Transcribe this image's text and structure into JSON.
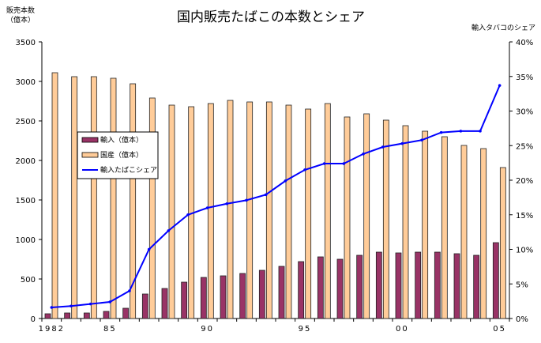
{
  "chart_data": {
    "type": "bar",
    "title": "国内販売たばこの本数とシェア",
    "ylabel": [
      "販売本数",
      "（億本）"
    ],
    "y2label": "輸入タバコのシェア",
    "ylim": [
      0,
      3500
    ],
    "y2lim": [
      0,
      40
    ],
    "yticks": [
      "0",
      "500",
      "1000",
      "1500",
      "2000",
      "2500",
      "3000",
      "3500"
    ],
    "y2ticks": [
      "0%",
      "5%",
      "10%",
      "15%",
      "20%",
      "25%",
      "30%",
      "35%",
      "40%"
    ],
    "x": [
      1982,
      1983,
      1984,
      1985,
      1986,
      1987,
      1988,
      1989,
      1990,
      1991,
      1992,
      1993,
      1994,
      1995,
      1996,
      1997,
      1998,
      1999,
      2000,
      2001,
      2002,
      2003,
      2004,
      2005
    ],
    "xticklabels": [
      {
        "index": 0,
        "label": "1982"
      },
      {
        "index": 3,
        "label": "85"
      },
      {
        "index": 8,
        "label": "90"
      },
      {
        "index": 13,
        "label": "95"
      },
      {
        "index": 18,
        "label": "00"
      },
      {
        "index": 23,
        "label": "05"
      }
    ],
    "legend_position": "upper-left",
    "series": [
      {
        "name": "輸入（億本）",
        "type": "bar",
        "axis": "left",
        "color": "#993366",
        "values": [
          60,
          70,
          70,
          90,
          130,
          310,
          380,
          460,
          520,
          540,
          570,
          610,
          660,
          720,
          780,
          750,
          800,
          840,
          830,
          840,
          840,
          820,
          800,
          960
        ]
      },
      {
        "name": "国産（億本）",
        "type": "bar",
        "axis": "left",
        "color": "#FFCC99",
        "values": [
          3110,
          3060,
          3060,
          3040,
          2970,
          2790,
          2700,
          2680,
          2720,
          2760,
          2740,
          2740,
          2700,
          2650,
          2720,
          2550,
          2590,
          2510,
          2440,
          2370,
          2300,
          2190,
          2150,
          1910
        ]
      },
      {
        "name": "輸入たばこシェア",
        "type": "line",
        "axis": "right",
        "color": "#0000FF",
        "values": [
          1.6,
          1.8,
          2.1,
          2.4,
          4.0,
          10.0,
          12.7,
          15.0,
          16.0,
          16.6,
          17.1,
          17.9,
          19.9,
          21.5,
          22.4,
          22.4,
          23.8,
          24.8,
          25.3,
          25.8,
          26.9,
          27.1,
          27.1,
          33.7
        ]
      }
    ]
  }
}
